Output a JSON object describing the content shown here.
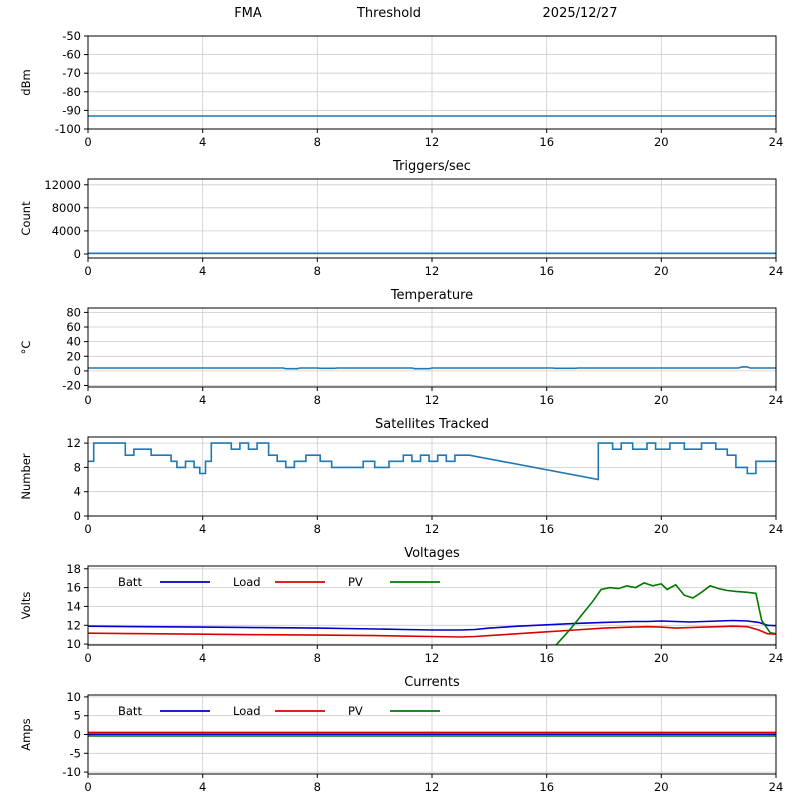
{
  "header": {
    "left": "FMA",
    "center": "Threshold",
    "right": "2025/12/27"
  },
  "chart_data": [
    {
      "type": "line",
      "title": "",
      "ylabel": "dBm",
      "xlim": [
        0,
        24
      ],
      "ylim": [
        -100,
        -50
      ],
      "xticks": [
        0,
        4,
        8,
        12,
        16,
        20,
        24
      ],
      "yticks": [
        -100,
        -90,
        -80,
        -70,
        -60,
        -50
      ],
      "grid": true,
      "legend": false,
      "series": [
        {
          "name": "Threshold",
          "color": "#1f77b4",
          "points": [
            [
              0,
              -93
            ],
            [
              24,
              -93
            ]
          ]
        }
      ]
    },
    {
      "type": "line",
      "title": "Triggers/sec",
      "ylabel": "Count",
      "xlim": [
        0,
        24
      ],
      "ylim": [
        -700,
        13000
      ],
      "xticks": [
        0,
        4,
        8,
        12,
        16,
        20,
        24
      ],
      "yticks": [
        0,
        4000,
        8000,
        12000
      ],
      "grid": true,
      "legend": false,
      "series": [
        {
          "name": "Triggers",
          "color": "#1f77b4",
          "points": [
            [
              0,
              120
            ],
            [
              24,
              120
            ]
          ]
        }
      ]
    },
    {
      "type": "line",
      "title": "Temperature",
      "ylabel": "°C",
      "xlim": [
        0,
        24
      ],
      "ylim": [
        -22,
        86
      ],
      "xticks": [
        0,
        4,
        8,
        12,
        16,
        20,
        24
      ],
      "yticks": [
        -20,
        0,
        20,
        40,
        60,
        80
      ],
      "grid": true,
      "legend": false,
      "series": [
        {
          "name": "Temperature",
          "color": "#1f77b4",
          "points": [
            [
              0,
              4
            ],
            [
              6.8,
              4
            ],
            [
              6.9,
              3
            ],
            [
              7.3,
              3
            ],
            [
              7.4,
              4
            ],
            [
              8.0,
              4
            ],
            [
              8.1,
              3.5
            ],
            [
              8.6,
              3.5
            ],
            [
              8.7,
              4
            ],
            [
              11.3,
              4
            ],
            [
              11.4,
              3
            ],
            [
              11.9,
              3
            ],
            [
              12.0,
              4
            ],
            [
              16.2,
              4
            ],
            [
              16.3,
              3.5
            ],
            [
              17.0,
              3.5
            ],
            [
              17.1,
              4
            ],
            [
              22.7,
              4
            ],
            [
              22.8,
              5.5
            ],
            [
              23.0,
              5.5
            ],
            [
              23.1,
              4
            ],
            [
              24,
              4
            ]
          ]
        }
      ]
    },
    {
      "type": "line",
      "title": "Satellites Tracked",
      "ylabel": "Number",
      "xlim": [
        0,
        24
      ],
      "ylim": [
        0,
        13
      ],
      "xticks": [
        0,
        4,
        8,
        12,
        16,
        20,
        24
      ],
      "yticks": [
        0,
        4,
        8,
        12
      ],
      "grid": true,
      "legend": false,
      "series": [
        {
          "name": "Satellites",
          "color": "#1f77b4",
          "points": [
            [
              0,
              9
            ],
            [
              0.2,
              9
            ],
            [
              0.2,
              12
            ],
            [
              1.3,
              12
            ],
            [
              1.3,
              10
            ],
            [
              1.6,
              10
            ],
            [
              1.6,
              11
            ],
            [
              2.2,
              11
            ],
            [
              2.2,
              10
            ],
            [
              2.9,
              10
            ],
            [
              2.9,
              9
            ],
            [
              3.1,
              9
            ],
            [
              3.1,
              8
            ],
            [
              3.4,
              8
            ],
            [
              3.4,
              9
            ],
            [
              3.7,
              9
            ],
            [
              3.7,
              8
            ],
            [
              3.9,
              8
            ],
            [
              3.9,
              7
            ],
            [
              4.1,
              7
            ],
            [
              4.1,
              9
            ],
            [
              4.3,
              9
            ],
            [
              4.3,
              12
            ],
            [
              5.0,
              12
            ],
            [
              5.0,
              11
            ],
            [
              5.3,
              11
            ],
            [
              5.3,
              12
            ],
            [
              5.6,
              12
            ],
            [
              5.6,
              11
            ],
            [
              5.9,
              11
            ],
            [
              5.9,
              12
            ],
            [
              6.3,
              12
            ],
            [
              6.3,
              10
            ],
            [
              6.6,
              10
            ],
            [
              6.6,
              9
            ],
            [
              6.9,
              9
            ],
            [
              6.9,
              8
            ],
            [
              7.2,
              8
            ],
            [
              7.2,
              9
            ],
            [
              7.6,
              9
            ],
            [
              7.6,
              10
            ],
            [
              8.1,
              10
            ],
            [
              8.1,
              9
            ],
            [
              8.5,
              9
            ],
            [
              8.5,
              8
            ],
            [
              9.6,
              8
            ],
            [
              9.6,
              9
            ],
            [
              10.0,
              9
            ],
            [
              10.0,
              8
            ],
            [
              10.5,
              8
            ],
            [
              10.5,
              9
            ],
            [
              11.0,
              9
            ],
            [
              11.0,
              10
            ],
            [
              11.3,
              10
            ],
            [
              11.3,
              9
            ],
            [
              11.6,
              9
            ],
            [
              11.6,
              10
            ],
            [
              11.9,
              10
            ],
            [
              11.9,
              9
            ],
            [
              12.2,
              9
            ],
            [
              12.2,
              10
            ],
            [
              12.5,
              10
            ],
            [
              12.5,
              9
            ],
            [
              12.8,
              9
            ],
            [
              12.8,
              10
            ],
            [
              13.3,
              10
            ],
            [
              17.8,
              6
            ],
            [
              17.8,
              12
            ],
            [
              18.3,
              12
            ],
            [
              18.3,
              11
            ],
            [
              18.6,
              11
            ],
            [
              18.6,
              12
            ],
            [
              19.0,
              12
            ],
            [
              19.0,
              11
            ],
            [
              19.5,
              11
            ],
            [
              19.5,
              12
            ],
            [
              19.8,
              12
            ],
            [
              19.8,
              11
            ],
            [
              20.3,
              11
            ],
            [
              20.3,
              12
            ],
            [
              20.8,
              12
            ],
            [
              20.8,
              11
            ],
            [
              21.4,
              11
            ],
            [
              21.4,
              12
            ],
            [
              21.9,
              12
            ],
            [
              21.9,
              11
            ],
            [
              22.3,
              11
            ],
            [
              22.3,
              10
            ],
            [
              22.6,
              10
            ],
            [
              22.6,
              8
            ],
            [
              23.0,
              8
            ],
            [
              23.0,
              7
            ],
            [
              23.3,
              7
            ],
            [
              23.3,
              9
            ],
            [
              23.6,
              9
            ],
            [
              24,
              9
            ]
          ]
        }
      ]
    },
    {
      "type": "line",
      "title": "Voltages",
      "ylabel": "Volts",
      "xlim": [
        0,
        24
      ],
      "ylim": [
        9.9,
        18.3
      ],
      "xticks": [
        0,
        4,
        8,
        12,
        16,
        20,
        24
      ],
      "yticks": [
        10,
        12,
        14,
        16,
        18
      ],
      "grid": true,
      "legend": true,
      "series": [
        {
          "name": "Batt",
          "color": "#0000cc",
          "points": [
            [
              0,
              11.9
            ],
            [
              2,
              11.85
            ],
            [
              4,
              11.8
            ],
            [
              6,
              11.75
            ],
            [
              8,
              11.7
            ],
            [
              10,
              11.6
            ],
            [
              11,
              11.55
            ],
            [
              12,
              11.5
            ],
            [
              13,
              11.5
            ],
            [
              13.5,
              11.55
            ],
            [
              14,
              11.7
            ],
            [
              15,
              11.9
            ],
            [
              16,
              12.05
            ],
            [
              17,
              12.2
            ],
            [
              18,
              12.3
            ],
            [
              18.5,
              12.35
            ],
            [
              19,
              12.4
            ],
            [
              19.5,
              12.4
            ],
            [
              20,
              12.45
            ],
            [
              20.5,
              12.4
            ],
            [
              21,
              12.35
            ],
            [
              21.5,
              12.4
            ],
            [
              22,
              12.45
            ],
            [
              22.5,
              12.5
            ],
            [
              23,
              12.45
            ],
            [
              23.4,
              12.3
            ],
            [
              23.7,
              12.0
            ],
            [
              24,
              11.95
            ]
          ]
        },
        {
          "name": "Load",
          "color": "#dd0000",
          "points": [
            [
              0,
              11.15
            ],
            [
              2,
              11.1
            ],
            [
              4,
              11.05
            ],
            [
              6,
              11.0
            ],
            [
              8,
              10.95
            ],
            [
              10,
              10.9
            ],
            [
              11,
              10.85
            ],
            [
              12,
              10.8
            ],
            [
              13,
              10.75
            ],
            [
              13.5,
              10.8
            ],
            [
              14,
              10.9
            ],
            [
              15,
              11.1
            ],
            [
              16,
              11.3
            ],
            [
              17,
              11.5
            ],
            [
              18,
              11.7
            ],
            [
              19,
              11.8
            ],
            [
              19.5,
              11.85
            ],
            [
              20,
              11.8
            ],
            [
              20.5,
              11.7
            ],
            [
              21,
              11.75
            ],
            [
              21.5,
              11.8
            ],
            [
              22,
              11.85
            ],
            [
              22.5,
              11.9
            ],
            [
              23,
              11.85
            ],
            [
              23.4,
              11.5
            ],
            [
              23.7,
              11.1
            ],
            [
              24,
              11.05
            ]
          ]
        },
        {
          "name": "PV",
          "color": "#007700",
          "points": [
            [
              16.3,
              9.8
            ],
            [
              16.8,
              11.5
            ],
            [
              17.2,
              13.0
            ],
            [
              17.6,
              14.5
            ],
            [
              17.9,
              15.8
            ],
            [
              18.2,
              16.0
            ],
            [
              18.5,
              15.9
            ],
            [
              18.8,
              16.2
            ],
            [
              19.1,
              16.0
            ],
            [
              19.4,
              16.5
            ],
            [
              19.7,
              16.2
            ],
            [
              20.0,
              16.4
            ],
            [
              20.2,
              15.8
            ],
            [
              20.5,
              16.3
            ],
            [
              20.8,
              15.2
            ],
            [
              21.1,
              14.9
            ],
            [
              21.4,
              15.5
            ],
            [
              21.7,
              16.2
            ],
            [
              22.0,
              15.9
            ],
            [
              22.3,
              15.7
            ],
            [
              22.6,
              15.6
            ],
            [
              23.0,
              15.5
            ],
            [
              23.3,
              15.4
            ],
            [
              23.5,
              12.5
            ],
            [
              23.8,
              11.2
            ],
            [
              24,
              11.1
            ]
          ]
        }
      ]
    },
    {
      "type": "line",
      "title": "Currents",
      "ylabel": "Amps",
      "xlim": [
        0,
        24
      ],
      "ylim": [
        -10.5,
        10.5
      ],
      "xticks": [
        0,
        4,
        8,
        12,
        16,
        20,
        24
      ],
      "yticks": [
        -10,
        -5,
        0,
        5,
        10
      ],
      "grid": true,
      "legend": true,
      "series": [
        {
          "name": "Batt",
          "color": "#0000cc",
          "points": [
            [
              0,
              0.05
            ],
            [
              24,
              0.05
            ]
          ]
        },
        {
          "name": "Load",
          "color": "#dd0000",
          "points": [
            [
              0,
              0.55
            ],
            [
              24,
              0.55
            ]
          ]
        },
        {
          "name": "PV",
          "color": "#007700",
          "points": [
            [
              0,
              -0.4
            ],
            [
              24,
              -0.4
            ]
          ]
        }
      ]
    }
  ]
}
